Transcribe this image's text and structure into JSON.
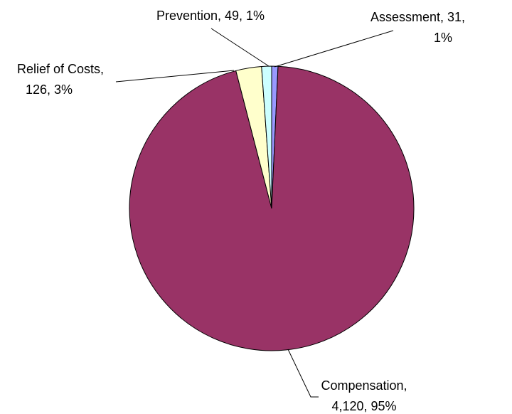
{
  "chart_data": {
    "type": "pie",
    "title": "",
    "slices": [
      {
        "name": "Assessment",
        "value": 31,
        "percent": "1%",
        "color": "#9999FF",
        "label_lines": [
          "Assessment, 31,",
          "1%"
        ]
      },
      {
        "name": "Compensation",
        "value": 4120,
        "percent": "95%",
        "color": "#993366",
        "label_lines": [
          "Compensation,",
          "4,120, 95%"
        ]
      },
      {
        "name": "Relief of Costs",
        "value": 126,
        "percent": "3%",
        "color": "#FFFFCC",
        "label_lines": [
          "Relief of Costs,",
          "126, 3%"
        ]
      },
      {
        "name": "Prevention",
        "value": 49,
        "percent": "1%",
        "color": "#CCFFFF",
        "label_lines": [
          "Prevention, 49, 1%"
        ]
      }
    ],
    "start_angle": "12 o'clock",
    "direction": "clockwise",
    "legend": "none",
    "data_labels": "outside with leader lines"
  }
}
